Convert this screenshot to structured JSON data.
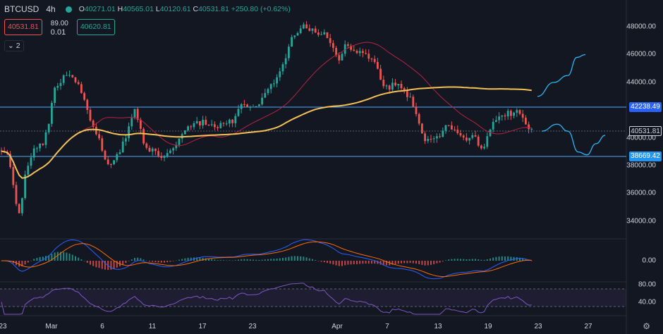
{
  "header": {
    "symbol": "BTCUSD",
    "timeframe": "4h",
    "open_label": "O",
    "open": "40271.01",
    "high_label": "H",
    "high": "40565.01",
    "low_label": "L",
    "low": "40120.61",
    "close_label": "C",
    "close": "40531.81",
    "change": "+250.80 (+0.62%)"
  },
  "trade": {
    "sell_price": "40531.81",
    "spread_top": "89.00",
    "spread_bottom": "0.01",
    "buy_price": "40620.81"
  },
  "collapse_label": "2",
  "price_axis": {
    "ticks": [
      "48000.00",
      "46000.00",
      "44000.00",
      "40000.00",
      "38000.00",
      "36000.00",
      "34000.00"
    ],
    "current_price": "40531.81",
    "resistance": "42238.49",
    "support": "38669.42"
  },
  "macd_axis": {
    "ticks": [
      "0.00"
    ]
  },
  "rsi_axis": {
    "ticks": [
      "80.00",
      "40.00"
    ]
  },
  "time_axis": {
    "ticks": [
      "23",
      "Mar",
      "6",
      "11",
      "17",
      "23",
      "Apr",
      "7",
      "13",
      "19",
      "23",
      "27"
    ]
  },
  "colors": {
    "background": "#131722",
    "up": "#26a69a",
    "down": "#ef5350",
    "ma_long": "#f5c056",
    "ma_short": "#b82245",
    "hline": "#4fa8ff",
    "projection": "#29b6f6",
    "macd": "#2962ff",
    "signal": "#ff6d00",
    "rsi": "#7e57c2"
  },
  "icons": {
    "status": "status-dot-icon",
    "settings": "gear-icon"
  },
  "chart_data": {
    "type": "candlestick",
    "symbol": "BTCUSD",
    "interval": "4h",
    "current_price": 40531.81,
    "resistance_level": 42238.49,
    "support_level": 38669.42,
    "ylim": [
      33500,
      49000
    ],
    "price_path_estimate": [
      [
        0,
        39100
      ],
      [
        12,
        38900
      ],
      [
        20,
        36000
      ],
      [
        28,
        34700
      ],
      [
        38,
        38000
      ],
      [
        48,
        39200
      ],
      [
        60,
        39600
      ],
      [
        70,
        41200
      ],
      [
        78,
        43800
      ],
      [
        88,
        44300
      ],
      [
        98,
        44800
      ],
      [
        108,
        44200
      ],
      [
        118,
        42800
      ],
      [
        130,
        40800
      ],
      [
        140,
        40200
      ],
      [
        148,
        38500
      ],
      [
        158,
        38200
      ],
      [
        170,
        39000
      ],
      [
        180,
        40400
      ],
      [
        190,
        42000
      ],
      [
        196,
        41300
      ],
      [
        204,
        39300
      ],
      [
        214,
        39200
      ],
      [
        226,
        38500
      ],
      [
        238,
        38900
      ],
      [
        252,
        39700
      ],
      [
        264,
        40500
      ],
      [
        276,
        41000
      ],
      [
        290,
        41200
      ],
      [
        304,
        40700
      ],
      [
        318,
        41300
      ],
      [
        332,
        41200
      ],
      [
        344,
        42500
      ],
      [
        356,
        42200
      ],
      [
        368,
        42600
      ],
      [
        380,
        43500
      ],
      [
        390,
        44200
      ],
      [
        402,
        45300
      ],
      [
        412,
        46900
      ],
      [
        420,
        47700
      ],
      [
        432,
        48000
      ],
      [
        444,
        47600
      ],
      [
        456,
        47600
      ],
      [
        468,
        46900
      ],
      [
        480,
        45600
      ],
      [
        490,
        46800
      ],
      [
        500,
        46200
      ],
      [
        510,
        46400
      ],
      [
        520,
        46000
      ],
      [
        530,
        45600
      ],
      [
        540,
        44000
      ],
      [
        550,
        43700
      ],
      [
        560,
        43800
      ],
      [
        570,
        43500
      ],
      [
        582,
        42700
      ],
      [
        592,
        41200
      ],
      [
        602,
        39800
      ],
      [
        612,
        39800
      ],
      [
        622,
        40100
      ],
      [
        632,
        41000
      ],
      [
        644,
        40700
      ],
      [
        654,
        39900
      ],
      [
        664,
        40100
      ],
      [
        674,
        40000
      ],
      [
        684,
        39000
      ],
      [
        694,
        40800
      ],
      [
        704,
        41400
      ],
      [
        714,
        41800
      ],
      [
        724,
        41700
      ],
      [
        734,
        42300
      ],
      [
        740,
        41600
      ],
      [
        748,
        40600
      ],
      [
        755,
        40500
      ]
    ],
    "projection_path_estimate": [
      [
        762,
        43000
      ],
      [
        785,
        44000
      ],
      [
        805,
        44500
      ],
      [
        818,
        45800
      ],
      [
        830,
        46000
      ]
    ],
    "projection_path_estimate_2": [
      [
        768,
        40500
      ],
      [
        790,
        41000
      ],
      [
        805,
        40500
      ],
      [
        820,
        39000
      ],
      [
        832,
        38800
      ],
      [
        845,
        39600
      ],
      [
        858,
        40200
      ]
    ]
  }
}
